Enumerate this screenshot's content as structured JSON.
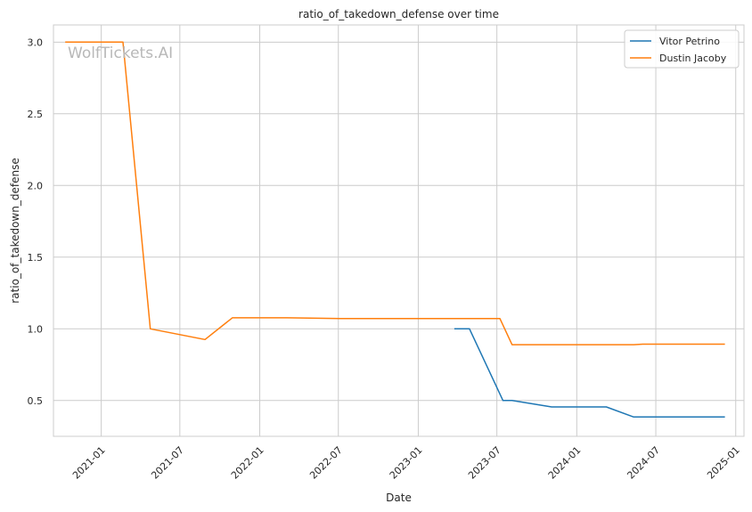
{
  "chart_data": {
    "type": "line",
    "title": "ratio_of_takedown_defense over time",
    "xlabel": "Date",
    "ylabel": "ratio_of_takedown_defense",
    "watermark": "WolfTickets.AI",
    "xlim": [
      "2020-09-13",
      "2025-01-20"
    ],
    "ylim": [
      0.25,
      3.12
    ],
    "x_ticks": [
      "2021-01",
      "2021-07",
      "2022-01",
      "2022-07",
      "2023-01",
      "2023-07",
      "2024-01",
      "2024-07",
      "2025-01"
    ],
    "y_ticks": [
      "0.5",
      "1.0",
      "1.5",
      "2.0",
      "2.5",
      "3.0"
    ],
    "grid": true,
    "legend_position": "top-right",
    "series": [
      {
        "name": "Vitor Petrino",
        "color": "#1f77b4",
        "points": [
          [
            "2023-03-25",
            1.0
          ],
          [
            "2023-04-29",
            1.0
          ],
          [
            "2023-07-15",
            0.5
          ],
          [
            "2023-08-05",
            0.5
          ],
          [
            "2023-11-04",
            0.455
          ],
          [
            "2024-03-09",
            0.455
          ],
          [
            "2024-05-11",
            0.385
          ],
          [
            "2024-12-07",
            0.385
          ]
        ]
      },
      {
        "name": "Dustin Jacoby",
        "color": "#ff7f0e",
        "points": [
          [
            "2020-10-10",
            3.0
          ],
          [
            "2021-02-20",
            3.0
          ],
          [
            "2021-04-24",
            1.0
          ],
          [
            "2021-08-28",
            0.925
          ],
          [
            "2021-10-30",
            1.077
          ],
          [
            "2022-03-05",
            1.077
          ],
          [
            "2022-07-16",
            1.071
          ],
          [
            "2023-07-08",
            1.071
          ],
          [
            "2023-08-05",
            0.889
          ],
          [
            "2024-05-11",
            0.889
          ],
          [
            "2024-06-01",
            0.893
          ],
          [
            "2024-12-07",
            0.893
          ]
        ]
      }
    ]
  }
}
